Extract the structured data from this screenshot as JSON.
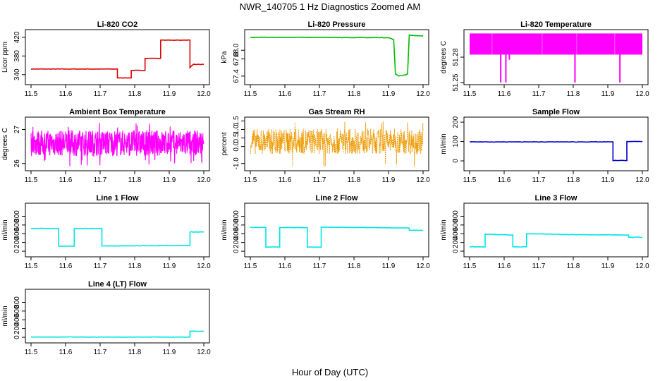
{
  "figure": {
    "title": "NWR_140705  1 Hz Diagnostics Zoomed AM",
    "xlabel": "Hour of Day (UTC)"
  },
  "chart_data": [
    {
      "type": "line",
      "title": "Li-820 CO2",
      "ylabel": "Licor ppm",
      "color": "#dd0000",
      "xlim": [
        11.5,
        12.0
      ],
      "ylim": [
        323,
        432
      ],
      "yticks": [
        340,
        380,
        420
      ],
      "xticks": [
        11.5,
        11.6,
        11.7,
        11.8,
        11.9,
        12.0
      ],
      "series": [
        {
          "name": "CO2",
          "x": [
            11.5,
            11.75,
            11.75,
            11.79,
            11.79,
            11.83,
            11.83,
            11.875,
            11.875,
            11.96,
            11.96,
            11.97,
            12.0
          ],
          "values": [
            352,
            352,
            333,
            333,
            349,
            349,
            375,
            375,
            414,
            414,
            355,
            362,
            362
          ]
        }
      ]
    },
    {
      "type": "line",
      "title": "Li-820 Pressure",
      "ylabel": "kPa",
      "color": "#00bb00",
      "xlim": [
        11.5,
        12.0
      ],
      "ylim": [
        67.25,
        68.43
      ],
      "yticks": [
        67.4,
        67.8,
        68.0
      ],
      "xticks": [
        11.5,
        11.6,
        11.7,
        11.8,
        11.9,
        12.0
      ],
      "series": [
        {
          "name": "Pressure",
          "x": [
            11.5,
            11.7,
            11.9,
            11.915,
            11.92,
            11.93,
            11.95,
            11.955,
            11.96,
            12.0
          ],
          "values": [
            68.3,
            68.3,
            68.29,
            68.25,
            67.45,
            67.4,
            67.43,
            67.45,
            68.35,
            68.33
          ]
        }
      ]
    },
    {
      "type": "line",
      "title": "Li-820 Temperature",
      "ylabel": "degrees C",
      "color": "#ff00ff",
      "xlim": [
        11.5,
        12.0
      ],
      "ylim": [
        51.25,
        51.31
      ],
      "yticks": [
        51.25,
        51.28
      ],
      "xticks": [
        11.5,
        11.6,
        11.7,
        11.8,
        11.9,
        12.0
      ],
      "band": {
        "low": 51.283,
        "high": 51.308
      },
      "dips": [
        {
          "x": 11.59,
          "v": 51.25
        },
        {
          "x": 11.605,
          "v": 51.25
        },
        {
          "x": 11.615,
          "v": 51.277
        },
        {
          "x": 11.805,
          "v": 51.25
        },
        {
          "x": 11.935,
          "v": 51.25
        }
      ]
    },
    {
      "type": "line",
      "title": "Ambient Box Temperature",
      "ylabel": "degrees C",
      "color": "#ff00ff",
      "xlim": [
        11.5,
        12.0
      ],
      "ylim": [
        25.85,
        27.3
      ],
      "yticks": [
        26.0,
        27.0
      ],
      "xticks": [
        11.5,
        11.6,
        11.7,
        11.8,
        11.9,
        12.0
      ],
      "noise": {
        "mean": 26.6,
        "amplitude": 0.38,
        "spike_low": 25.9,
        "spike_high": 27.2
      }
    },
    {
      "type": "line",
      "title": "Gas Stream RH",
      "ylabel": "percent",
      "color": "#ee9900",
      "xlim": [
        11.5,
        12.0
      ],
      "ylim": [
        -1.3,
        1.6
      ],
      "yticks": [
        -1.0,
        0.0,
        0.5,
        1.0,
        1.5
      ],
      "xticks": [
        11.5,
        11.6,
        11.7,
        11.8,
        11.9,
        12.0
      ],
      "noise": {
        "mean": 0.3,
        "amplitude": 0.75,
        "spike_low": -1.2,
        "spike_high": 1.5
      }
    },
    {
      "type": "line",
      "title": "Sample Flow",
      "ylabel": "ml/min",
      "color": "#0000cc",
      "xlim": [
        11.5,
        12.0
      ],
      "ylim": [
        -40,
        215
      ],
      "yticks": [
        0,
        100,
        200
      ],
      "xticks": [
        11.5,
        11.6,
        11.7,
        11.8,
        11.9,
        12.0
      ],
      "series": [
        {
          "name": "Sample Flow",
          "x": [
            11.5,
            11.915,
            11.915,
            11.955,
            11.955,
            12.0
          ],
          "values": [
            98,
            98,
            2,
            2,
            100,
            100
          ]
        }
      ]
    },
    {
      "type": "line",
      "title": "Line 1 Flow",
      "ylabel": "ml/min",
      "color": "#00e5e5",
      "xlim": [
        11.5,
        12.0
      ],
      "ylim": [
        -80,
        1050
      ],
      "yticks": [
        0,
        200,
        400,
        600,
        800
      ],
      "xticks": [
        11.5,
        11.6,
        11.7,
        11.8,
        11.9,
        12.0
      ],
      "series": [
        {
          "name": "Line 1",
          "x": [
            11.5,
            11.58,
            11.58,
            11.625,
            11.625,
            11.705,
            11.705,
            11.96,
            11.96,
            12.0
          ],
          "values": [
            520,
            520,
            115,
            115,
            520,
            520,
            120,
            130,
            440,
            440
          ]
        }
      ]
    },
    {
      "type": "line",
      "title": "Line 2 Flow",
      "ylabel": "ml/min",
      "color": "#00e5e5",
      "xlim": [
        11.5,
        12.0
      ],
      "ylim": [
        -80,
        1050
      ],
      "yticks": [
        0,
        200,
        400,
        600,
        800
      ],
      "xticks": [
        11.5,
        11.6,
        11.7,
        11.8,
        11.9,
        12.0
      ],
      "series": [
        {
          "name": "Line 2",
          "x": [
            11.5,
            11.545,
            11.545,
            11.585,
            11.585,
            11.665,
            11.665,
            11.705,
            11.705,
            11.85,
            11.96,
            11.96,
            12.0
          ],
          "values": [
            545,
            545,
            95,
            95,
            540,
            540,
            95,
            95,
            550,
            540,
            530,
            480,
            480
          ]
        }
      ]
    },
    {
      "type": "line",
      "title": "Line 3 Flow",
      "ylabel": "ml/min",
      "color": "#00e5e5",
      "xlim": [
        11.5,
        12.0
      ],
      "ylim": [
        -80,
        1050
      ],
      "yticks": [
        0,
        200,
        400,
        600,
        800
      ],
      "xticks": [
        11.5,
        11.6,
        11.7,
        11.8,
        11.9,
        12.0
      ],
      "series": [
        {
          "name": "Line 3",
          "x": [
            11.5,
            11.545,
            11.545,
            11.625,
            11.625,
            11.665,
            11.665,
            11.8,
            11.96,
            11.96,
            12.0
          ],
          "values": [
            100,
            100,
            390,
            370,
            100,
            100,
            400,
            380,
            370,
            320,
            320
          ]
        }
      ]
    },
    {
      "type": "line",
      "title": "Line 4 (LT) Flow",
      "ylabel": "ml/min",
      "color": "#00e5e5",
      "xlim": [
        11.5,
        12.0
      ],
      "ylim": [
        -80,
        1050
      ],
      "yticks": [
        0,
        200,
        400,
        600,
        800
      ],
      "xticks": [
        11.5,
        11.6,
        11.7,
        11.8,
        11.9,
        12.0
      ],
      "series": [
        {
          "name": "Line 4",
          "x": [
            11.5,
            11.96,
            11.96,
            12.0
          ],
          "values": [
            5,
            5,
            140,
            140
          ]
        }
      ]
    }
  ]
}
